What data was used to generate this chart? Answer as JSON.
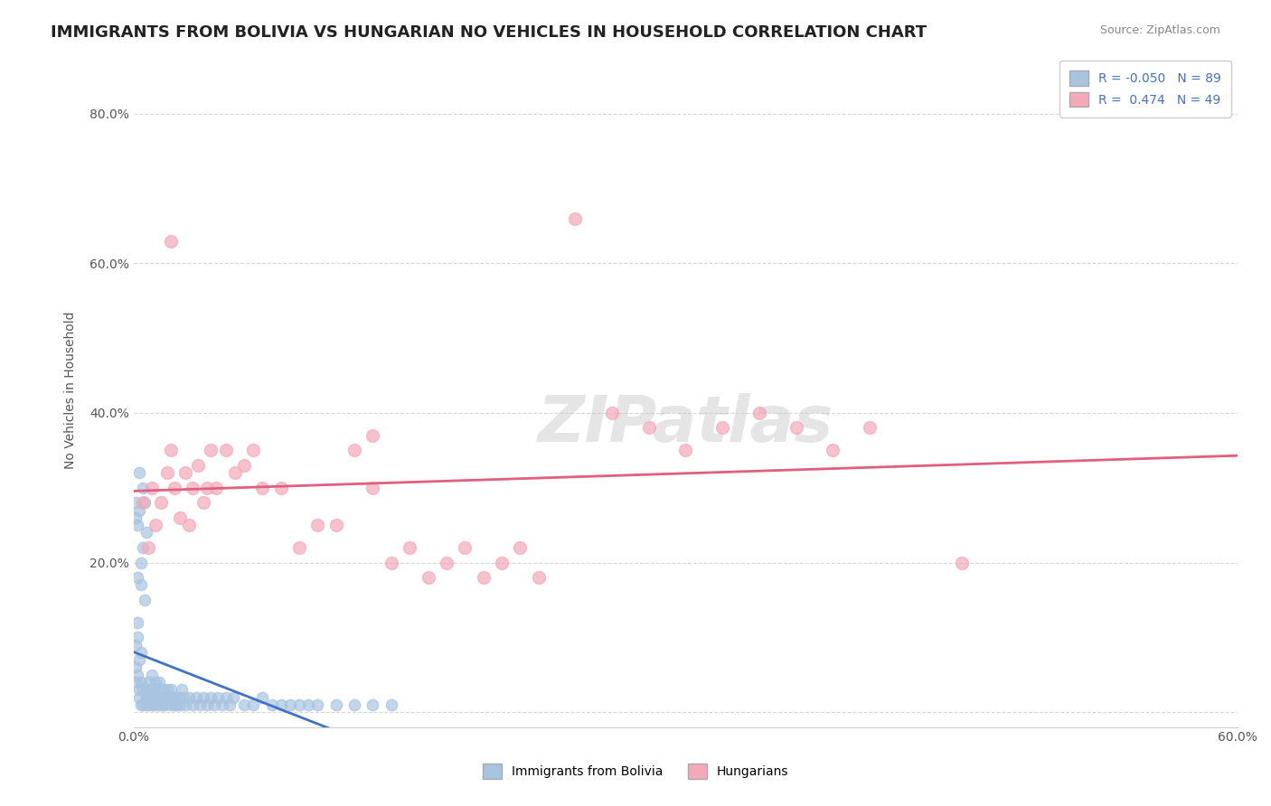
{
  "title": "IMMIGRANTS FROM BOLIVIA VS HUNGARIAN NO VEHICLES IN HOUSEHOLD CORRELATION CHART",
  "source": "Source: ZipAtlas.com",
  "xlabel": "",
  "ylabel": "No Vehicles in Household",
  "xlim": [
    0.0,
    0.6
  ],
  "ylim": [
    -0.02,
    0.88
  ],
  "yticks": [
    0.0,
    0.2,
    0.4,
    0.6,
    0.8
  ],
  "ytick_labels": [
    "",
    "20.0%",
    "40.0%",
    "60.0%",
    "80.0%"
  ],
  "xticks": [
    0.0,
    0.1,
    0.2,
    0.3,
    0.4,
    0.5,
    0.6
  ],
  "xtick_labels": [
    "0.0%",
    "",
    "",
    "",
    "",
    "",
    "60.0%"
  ],
  "R_blue": -0.05,
  "N_blue": 89,
  "R_pink": 0.474,
  "N_pink": 49,
  "legend_labels": [
    "Immigrants from Bolivia",
    "Hungarians"
  ],
  "blue_color": "#a8c4e0",
  "pink_color": "#f4a8b8",
  "blue_line_color": "#4472c4",
  "pink_line_color": "#e06080",
  "blue_scatter": [
    [
      0.001,
      0.26
    ],
    [
      0.002,
      0.18
    ],
    [
      0.003,
      0.02
    ],
    [
      0.003,
      0.03
    ],
    [
      0.004,
      0.04
    ],
    [
      0.004,
      0.01
    ],
    [
      0.005,
      0.01
    ],
    [
      0.005,
      0.03
    ],
    [
      0.006,
      0.28
    ],
    [
      0.007,
      0.02
    ],
    [
      0.007,
      0.01
    ],
    [
      0.007,
      0.03
    ],
    [
      0.008,
      0.04
    ],
    [
      0.008,
      0.02
    ],
    [
      0.008,
      0.01
    ],
    [
      0.009,
      0.03
    ],
    [
      0.009,
      0.02
    ],
    [
      0.01,
      0.05
    ],
    [
      0.01,
      0.01
    ],
    [
      0.01,
      0.02
    ],
    [
      0.011,
      0.01
    ],
    [
      0.011,
      0.03
    ],
    [
      0.012,
      0.02
    ],
    [
      0.012,
      0.04
    ],
    [
      0.013,
      0.01
    ],
    [
      0.013,
      0.03
    ],
    [
      0.014,
      0.04
    ],
    [
      0.014,
      0.02
    ],
    [
      0.015,
      0.02
    ],
    [
      0.015,
      0.01
    ],
    [
      0.016,
      0.01
    ],
    [
      0.016,
      0.03
    ],
    [
      0.017,
      0.02
    ],
    [
      0.017,
      0.01
    ],
    [
      0.018,
      0.03
    ],
    [
      0.018,
      0.02
    ],
    [
      0.019,
      0.02
    ],
    [
      0.02,
      0.01
    ],
    [
      0.02,
      0.03
    ],
    [
      0.021,
      0.02
    ],
    [
      0.022,
      0.01
    ],
    [
      0.022,
      0.02
    ],
    [
      0.023,
      0.01
    ],
    [
      0.024,
      0.02
    ],
    [
      0.025,
      0.01
    ],
    [
      0.026,
      0.03
    ],
    [
      0.027,
      0.02
    ],
    [
      0.028,
      0.01
    ],
    [
      0.03,
      0.02
    ],
    [
      0.032,
      0.01
    ],
    [
      0.034,
      0.02
    ],
    [
      0.036,
      0.01
    ],
    [
      0.038,
      0.02
    ],
    [
      0.04,
      0.01
    ],
    [
      0.042,
      0.02
    ],
    [
      0.044,
      0.01
    ],
    [
      0.046,
      0.02
    ],
    [
      0.048,
      0.01
    ],
    [
      0.05,
      0.02
    ],
    [
      0.052,
      0.01
    ],
    [
      0.054,
      0.02
    ],
    [
      0.06,
      0.01
    ],
    [
      0.065,
      0.01
    ],
    [
      0.07,
      0.02
    ],
    [
      0.075,
      0.01
    ],
    [
      0.08,
      0.01
    ],
    [
      0.085,
      0.01
    ],
    [
      0.09,
      0.01
    ],
    [
      0.095,
      0.01
    ],
    [
      0.1,
      0.01
    ],
    [
      0.11,
      0.01
    ],
    [
      0.12,
      0.01
    ],
    [
      0.13,
      0.01
    ],
    [
      0.14,
      0.01
    ],
    [
      0.005,
      0.22
    ],
    [
      0.003,
      0.27
    ],
    [
      0.004,
      0.2
    ],
    [
      0.006,
      0.15
    ],
    [
      0.007,
      0.24
    ],
    [
      0.002,
      0.25
    ],
    [
      0.001,
      0.28
    ],
    [
      0.003,
      0.32
    ],
    [
      0.004,
      0.17
    ],
    [
      0.005,
      0.3
    ],
    [
      0.002,
      0.1
    ],
    [
      0.001,
      0.04
    ],
    [
      0.001,
      0.06
    ],
    [
      0.002,
      0.05
    ],
    [
      0.003,
      0.07
    ],
    [
      0.004,
      0.08
    ],
    [
      0.001,
      0.09
    ],
    [
      0.002,
      0.12
    ]
  ],
  "pink_scatter": [
    [
      0.005,
      0.28
    ],
    [
      0.008,
      0.22
    ],
    [
      0.01,
      0.3
    ],
    [
      0.012,
      0.25
    ],
    [
      0.015,
      0.28
    ],
    [
      0.018,
      0.32
    ],
    [
      0.02,
      0.35
    ],
    [
      0.022,
      0.3
    ],
    [
      0.025,
      0.26
    ],
    [
      0.028,
      0.32
    ],
    [
      0.03,
      0.25
    ],
    [
      0.032,
      0.3
    ],
    [
      0.035,
      0.33
    ],
    [
      0.038,
      0.28
    ],
    [
      0.04,
      0.3
    ],
    [
      0.042,
      0.35
    ],
    [
      0.045,
      0.3
    ],
    [
      0.05,
      0.35
    ],
    [
      0.055,
      0.32
    ],
    [
      0.06,
      0.33
    ],
    [
      0.065,
      0.35
    ],
    [
      0.07,
      0.3
    ],
    [
      0.08,
      0.3
    ],
    [
      0.09,
      0.22
    ],
    [
      0.1,
      0.25
    ],
    [
      0.11,
      0.25
    ],
    [
      0.12,
      0.35
    ],
    [
      0.13,
      0.3
    ],
    [
      0.14,
      0.2
    ],
    [
      0.15,
      0.22
    ],
    [
      0.16,
      0.18
    ],
    [
      0.17,
      0.2
    ],
    [
      0.18,
      0.22
    ],
    [
      0.19,
      0.18
    ],
    [
      0.2,
      0.2
    ],
    [
      0.21,
      0.22
    ],
    [
      0.22,
      0.18
    ],
    [
      0.26,
      0.4
    ],
    [
      0.28,
      0.38
    ],
    [
      0.3,
      0.35
    ],
    [
      0.32,
      0.38
    ],
    [
      0.34,
      0.4
    ],
    [
      0.36,
      0.38
    ],
    [
      0.38,
      0.35
    ],
    [
      0.4,
      0.38
    ],
    [
      0.45,
      0.2
    ],
    [
      0.02,
      0.63
    ],
    [
      0.24,
      0.66
    ],
    [
      0.13,
      0.37
    ]
  ],
  "watermark": "ZIPatlas",
  "title_fontsize": 13,
  "axis_label_fontsize": 10,
  "tick_fontsize": 10,
  "legend_fontsize": 10,
  "background_color": "#ffffff",
  "grid_color": "#cccccc"
}
